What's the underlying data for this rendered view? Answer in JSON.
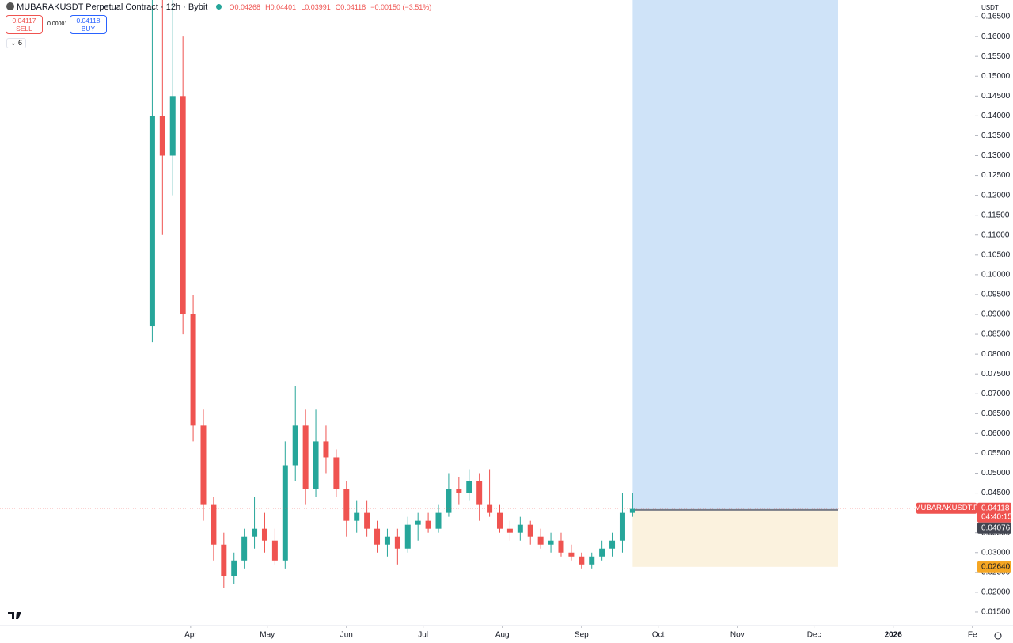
{
  "header": {
    "title": "MUBARAKUSDT Perpetual Contract · 12h · Bybit",
    "open": "O0.04268",
    "high": "H0.04401",
    "low": "L0.03991",
    "close": "C0.04118",
    "change": "−0.00150 (−3.51%)",
    "indicators": "6"
  },
  "trade": {
    "sell_price": "0.04117",
    "sell": "SELL",
    "spread": "0.00001",
    "buy_price": "0.04118",
    "buy": "BUY"
  },
  "currency": "USDT",
  "chart_data": {
    "type": "candlestick",
    "up_color": "#26a69a",
    "down_color": "#ef5350",
    "x": [
      16,
      20,
      24,
      28,
      32,
      36,
      40,
      44,
      48,
      52,
      56,
      60,
      64,
      68,
      72,
      76,
      80,
      84,
      88,
      92,
      96,
      100,
      104,
      108,
      112,
      116,
      120,
      124,
      128,
      132,
      136,
      140,
      144,
      148,
      152,
      156,
      160,
      164,
      168,
      172,
      176,
      180,
      184,
      188,
      192,
      196,
      200,
      204
    ],
    "open": [
      0.087,
      0.14,
      0.13,
      0.145,
      0.09,
      0.062,
      0.042,
      0.032,
      0.024,
      0.028,
      0.034,
      0.036,
      0.033,
      0.028,
      0.052,
      0.062,
      0.046,
      0.058,
      0.054,
      0.046,
      0.038,
      0.04,
      0.036,
      0.032,
      0.034,
      0.031,
      0.037,
      0.038,
      0.036,
      0.04,
      0.046,
      0.045,
      0.048,
      0.042,
      0.04,
      0.036,
      0.035,
      0.037,
      0.034,
      0.032,
      0.033,
      0.03,
      0.029,
      0.027,
      0.029,
      0.031,
      0.033,
      0.04
    ],
    "high": [
      0.17,
      0.17,
      0.17,
      0.16,
      0.095,
      0.066,
      0.044,
      0.035,
      0.03,
      0.036,
      0.044,
      0.04,
      0.036,
      0.058,
      0.072,
      0.066,
      0.066,
      0.062,
      0.056,
      0.048,
      0.043,
      0.043,
      0.038,
      0.036,
      0.036,
      0.039,
      0.04,
      0.04,
      0.042,
      0.05,
      0.049,
      0.051,
      0.05,
      0.051,
      0.042,
      0.038,
      0.039,
      0.038,
      0.036,
      0.035,
      0.035,
      0.032,
      0.03,
      0.03,
      0.033,
      0.035,
      0.045,
      0.045
    ],
    "low": [
      0.083,
      0.11,
      0.12,
      0.085,
      0.058,
      0.038,
      0.028,
      0.021,
      0.022,
      0.026,
      0.031,
      0.03,
      0.027,
      0.026,
      0.048,
      0.042,
      0.044,
      0.05,
      0.044,
      0.034,
      0.035,
      0.034,
      0.03,
      0.029,
      0.027,
      0.03,
      0.033,
      0.035,
      0.035,
      0.039,
      0.042,
      0.043,
      0.038,
      0.039,
      0.035,
      0.033,
      0.033,
      0.032,
      0.031,
      0.03,
      0.029,
      0.028,
      0.026,
      0.026,
      0.028,
      0.029,
      0.03,
      0.039
    ],
    "close": [
      0.14,
      0.13,
      0.145,
      0.09,
      0.062,
      0.042,
      0.032,
      0.024,
      0.028,
      0.034,
      0.036,
      0.033,
      0.028,
      0.052,
      0.062,
      0.046,
      0.058,
      0.054,
      0.046,
      0.038,
      0.04,
      0.036,
      0.032,
      0.034,
      0.031,
      0.037,
      0.038,
      0.036,
      0.04,
      0.046,
      0.045,
      0.048,
      0.042,
      0.04,
      0.036,
      0.035,
      0.037,
      0.034,
      0.032,
      0.033,
      0.03,
      0.029,
      0.027,
      0.029,
      0.031,
      0.033,
      0.04,
      0.041
    ],
    "xlim": [
      -43.6,
      338
    ],
    "xticks": [
      {
        "value": 31,
        "label": "Apr"
      },
      {
        "value": 61,
        "label": "May"
      },
      {
        "value": 92,
        "label": "Jun"
      },
      {
        "value": 122,
        "label": "Jul"
      },
      {
        "value": 153,
        "label": "Aug"
      },
      {
        "value": 184,
        "label": "Sep"
      },
      {
        "value": 214,
        "label": "Oct"
      },
      {
        "value": 245,
        "label": "Nov"
      },
      {
        "value": 275,
        "label": "Dec"
      },
      {
        "value": 306,
        "label": "2026"
      },
      {
        "value": 337,
        "label": "Fe"
      }
    ],
    "ylim": [
      0.0116,
      0.1692
    ],
    "yticks": [
      {
        "value": 0.015,
        "label": "0.01500"
      },
      {
        "value": 0.02,
        "label": "0.02000"
      },
      {
        "value": 0.025,
        "label": "0.02500"
      },
      {
        "value": 0.03,
        "label": "0.03000"
      },
      {
        "value": 0.035,
        "label": "0.03500"
      },
      {
        "value": 0.04,
        "label": "0.04000"
      },
      {
        "value": 0.045,
        "label": "0.04500"
      },
      {
        "value": 0.05,
        "label": "0.05000"
      },
      {
        "value": 0.055,
        "label": "0.05500"
      },
      {
        "value": 0.06,
        "label": "0.06000"
      },
      {
        "value": 0.065,
        "label": "0.06500"
      },
      {
        "value": 0.07,
        "label": "0.07000"
      },
      {
        "value": 0.075,
        "label": "0.07500"
      },
      {
        "value": 0.08,
        "label": "0.08000"
      },
      {
        "value": 0.085,
        "label": "0.08500"
      },
      {
        "value": 0.09,
        "label": "0.09000"
      },
      {
        "value": 0.095,
        "label": "0.09500"
      },
      {
        "value": 0.1,
        "label": "0.10000"
      },
      {
        "value": 0.105,
        "label": "0.10500"
      },
      {
        "value": 0.11,
        "label": "0.11000"
      },
      {
        "value": 0.115,
        "label": "0.11500"
      },
      {
        "value": 0.12,
        "label": "0.12000"
      },
      {
        "value": 0.125,
        "label": "0.12500"
      },
      {
        "value": 0.13,
        "label": "0.13000"
      },
      {
        "value": 0.135,
        "label": "0.13500"
      },
      {
        "value": 0.14,
        "label": "0.14000"
      },
      {
        "value": 0.145,
        "label": "0.14500"
      },
      {
        "value": 0.15,
        "label": "0.15000"
      },
      {
        "value": 0.155,
        "label": "0.15500"
      },
      {
        "value": 0.16,
        "label": "0.16000"
      },
      {
        "value": 0.165,
        "label": "0.16500"
      }
    ],
    "last_price": {
      "name": "MUBARAKUSDT.P",
      "value": 0.04118,
      "countdown": "04:40:15"
    },
    "position": {
      "entry": 0.04076,
      "stop": {
        "value": 0.0264,
        "label": "0.02640"
      }
    }
  }
}
